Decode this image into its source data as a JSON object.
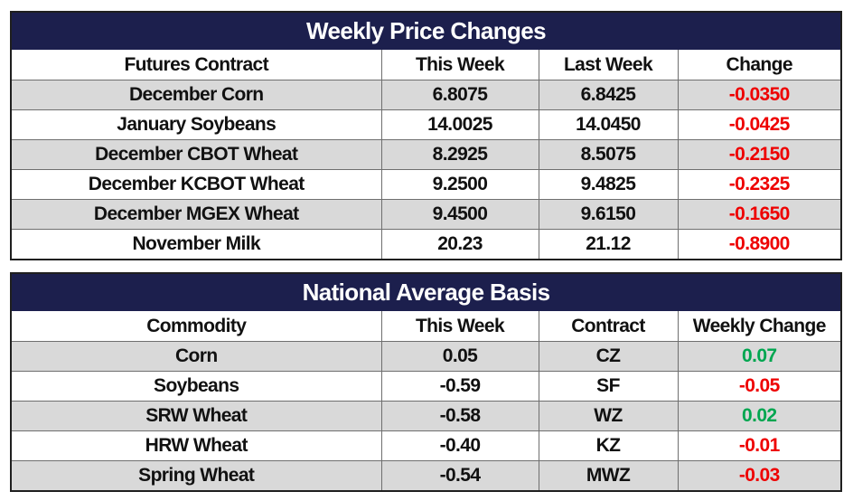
{
  "weekly": {
    "title": "Weekly Price Changes",
    "headers": [
      "Futures Contract",
      "This Week",
      "Last Week",
      "Change"
    ],
    "rows": [
      {
        "contract": "December Corn",
        "this_week": "6.8075",
        "last_week": "6.8425",
        "change": "-0.0350",
        "trend": "neg"
      },
      {
        "contract": "January Soybeans",
        "this_week": "14.0025",
        "last_week": "14.0450",
        "change": "-0.0425",
        "trend": "neg"
      },
      {
        "contract": "December CBOT Wheat",
        "this_week": "8.2925",
        "last_week": "8.5075",
        "change": "-0.2150",
        "trend": "neg"
      },
      {
        "contract": "December KCBOT Wheat",
        "this_week": "9.2500",
        "last_week": "9.4825",
        "change": "-0.2325",
        "trend": "neg"
      },
      {
        "contract": "December MGEX Wheat",
        "this_week": "9.4500",
        "last_week": "9.6150",
        "change": "-0.1650",
        "trend": "neg"
      },
      {
        "contract": "November Milk",
        "this_week": "20.23",
        "last_week": "21.12",
        "change": "-0.8900",
        "trend": "neg"
      }
    ]
  },
  "basis": {
    "title": "National Average Basis",
    "headers": [
      "Commodity",
      "This Week",
      "Contract",
      "Weekly Change"
    ],
    "rows": [
      {
        "commodity": "Corn",
        "this_week": "0.05",
        "contract": "CZ",
        "change": "0.07",
        "trend": "pos"
      },
      {
        "commodity": "Soybeans",
        "this_week": "-0.59",
        "contract": "SF",
        "change": "-0.05",
        "trend": "neg"
      },
      {
        "commodity": "SRW Wheat",
        "this_week": "-0.58",
        "contract": "WZ",
        "change": "0.02",
        "trend": "pos"
      },
      {
        "commodity": "HRW Wheat",
        "this_week": "-0.40",
        "contract": "KZ",
        "change": "-0.01",
        "trend": "neg"
      },
      {
        "commodity": "Spring Wheat",
        "this_week": "-0.54",
        "contract": "MWZ",
        "change": "-0.03",
        "trend": "neg"
      }
    ]
  },
  "colors": {
    "title_bg": "#1c1f4d",
    "alt_row_bg": "#d9d9d9",
    "negative": "#ee0000",
    "positive": "#00a650"
  }
}
